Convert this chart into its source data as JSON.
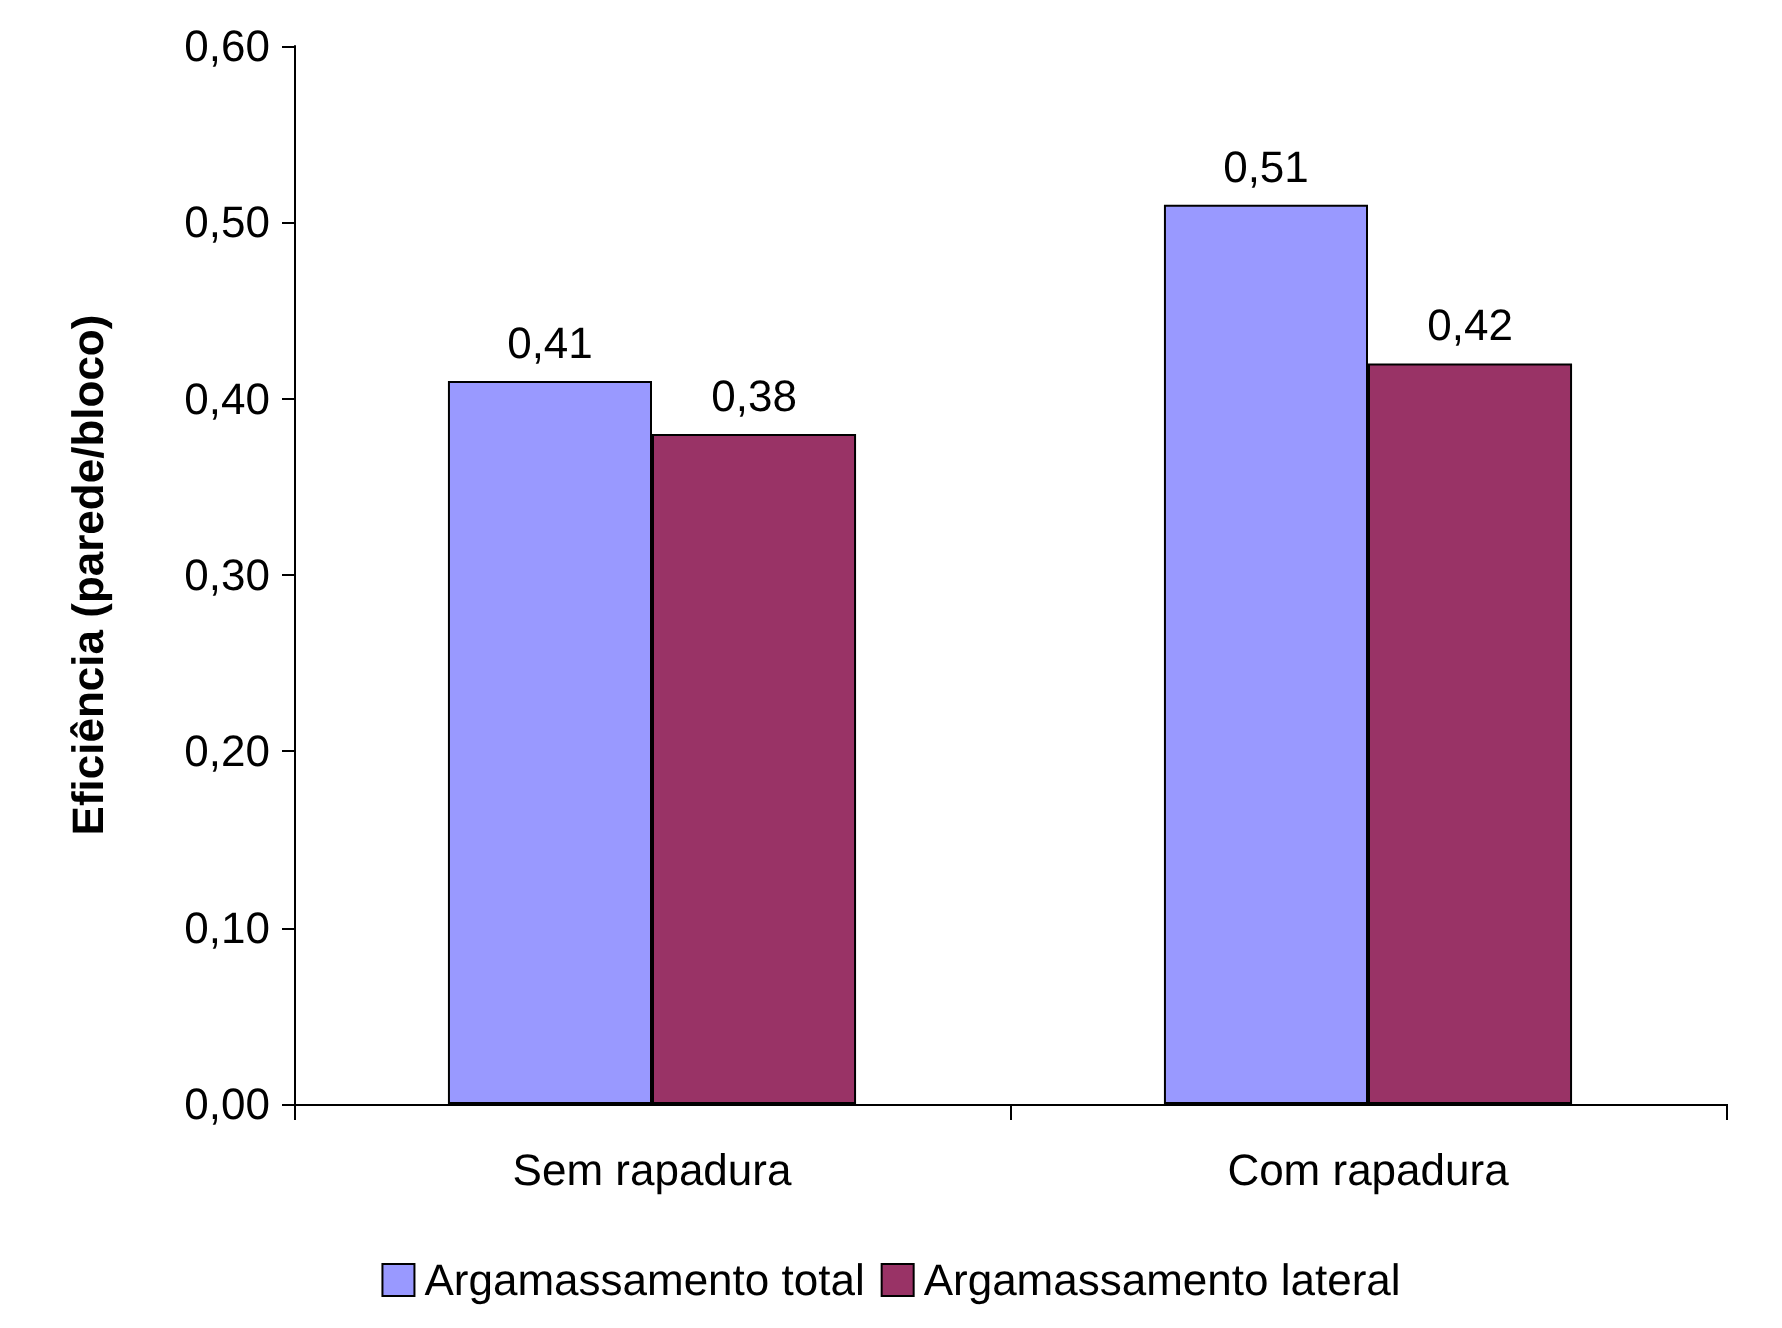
{
  "chart_data": {
    "type": "bar",
    "ylabel": "Eficiência (parede/bloco)",
    "categories": [
      "Sem rapadura",
      "Com rapadura"
    ],
    "series": [
      {
        "name": "Argamassamento total",
        "color": "#9999ff",
        "values": [
          0.41,
          0.51
        ],
        "value_labels": [
          "0,41",
          "0,51"
        ]
      },
      {
        "name": "Argamassamento lateral",
        "color": "#993366",
        "values": [
          0.38,
          0.42
        ],
        "value_labels": [
          "0,38",
          "0,42"
        ]
      }
    ],
    "ylim": [
      0,
      0.6
    ],
    "yticks": [
      {
        "value": 0,
        "label": "0,00"
      },
      {
        "value": 0.1,
        "label": "0,10"
      },
      {
        "value": 0.2,
        "label": "0,20"
      },
      {
        "value": 0.3,
        "label": "0,30"
      },
      {
        "value": 0.4,
        "label": "0,40"
      },
      {
        "value": 0.5,
        "label": "0,50"
      },
      {
        "value": 0.6,
        "label": "0,60"
      }
    ],
    "grid": false,
    "legend": "bottom"
  }
}
